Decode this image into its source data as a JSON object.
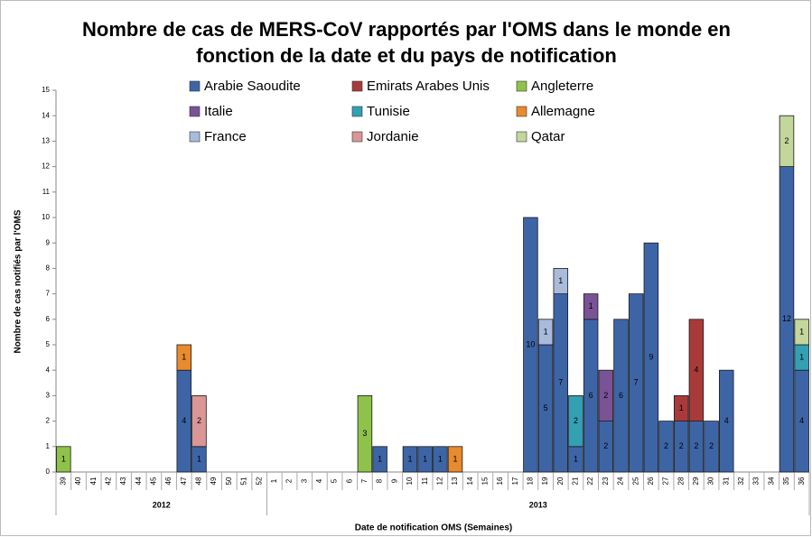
{
  "chart_data": {
    "type": "stacked_bar",
    "title": "Nombre de cas de MERS-CoV rapportés par l'OMS dans le monde en fonction de la date et du pays de notification",
    "y_label": "Nombre de cas notifiés par l'OMS",
    "x_label": "Date de notification OMS (Semaines)",
    "categories": [
      "39",
      "40",
      "41",
      "42",
      "43",
      "44",
      "45",
      "46",
      "47",
      "48",
      "49",
      "50",
      "51",
      "52",
      "1",
      "2",
      "3",
      "4",
      "5",
      "6",
      "7",
      "8",
      "9",
      "10",
      "11",
      "12",
      "13",
      "14",
      "15",
      "16",
      "17",
      "18",
      "19",
      "20",
      "21",
      "22",
      "23",
      "24",
      "25",
      "26",
      "27",
      "28",
      "29",
      "30",
      "31",
      "32",
      "33",
      "34",
      "35",
      "36"
    ],
    "groups": [
      {
        "label": "2012",
        "count": 14
      },
      {
        "label": "2013",
        "count": 36
      }
    ],
    "ylim": [
      0,
      15
    ],
    "yticks": [
      0,
      1,
      2,
      3,
      4,
      5,
      6,
      7,
      8,
      9,
      10,
      11,
      12,
      13,
      14,
      15
    ],
    "grid": false,
    "series": [
      {
        "name": "Arabie Saoudite",
        "color": "#3d65a6",
        "values": [
          null,
          null,
          null,
          null,
          null,
          null,
          null,
          null,
          4,
          1,
          null,
          null,
          null,
          null,
          null,
          null,
          null,
          null,
          null,
          null,
          null,
          1,
          null,
          1,
          1,
          1,
          null,
          null,
          null,
          null,
          null,
          10,
          5,
          7,
          1,
          6,
          2,
          6,
          7,
          9,
          2,
          2,
          2,
          2,
          4,
          null,
          null,
          null,
          12,
          4
        ]
      },
      {
        "name": "Emirats Arabes Unis",
        "color": "#a93a3a",
        "values": [
          null,
          null,
          null,
          null,
          null,
          null,
          null,
          null,
          null,
          null,
          null,
          null,
          null,
          null,
          null,
          null,
          null,
          null,
          null,
          null,
          null,
          null,
          null,
          null,
          null,
          null,
          null,
          null,
          null,
          null,
          null,
          null,
          null,
          null,
          null,
          null,
          null,
          null,
          null,
          null,
          null,
          1,
          4,
          null,
          null,
          null,
          null,
          null,
          null,
          null
        ]
      },
      {
        "name": "Angleterre",
        "color": "#8fc24a",
        "values": [
          1,
          null,
          null,
          null,
          null,
          null,
          null,
          null,
          null,
          null,
          null,
          null,
          null,
          null,
          null,
          null,
          null,
          null,
          null,
          null,
          3,
          null,
          null,
          null,
          null,
          null,
          null,
          null,
          null,
          null,
          null,
          null,
          null,
          null,
          null,
          null,
          null,
          null,
          null,
          null,
          null,
          null,
          null,
          null,
          null,
          null,
          null,
          null,
          null,
          null
        ]
      },
      {
        "name": "Italie",
        "color": "#7a5296",
        "values": [
          null,
          null,
          null,
          null,
          null,
          null,
          null,
          null,
          null,
          null,
          null,
          null,
          null,
          null,
          null,
          null,
          null,
          null,
          null,
          null,
          null,
          null,
          null,
          null,
          null,
          null,
          null,
          null,
          null,
          null,
          null,
          null,
          null,
          null,
          null,
          1,
          2,
          null,
          null,
          null,
          null,
          null,
          null,
          null,
          null,
          null,
          null,
          null,
          null,
          null
        ]
      },
      {
        "name": "Tunisie",
        "color": "#33a0b4",
        "values": [
          null,
          null,
          null,
          null,
          null,
          null,
          null,
          null,
          null,
          null,
          null,
          null,
          null,
          null,
          null,
          null,
          null,
          null,
          null,
          null,
          null,
          null,
          null,
          null,
          null,
          null,
          null,
          null,
          null,
          null,
          null,
          null,
          null,
          null,
          2,
          null,
          null,
          null,
          null,
          null,
          null,
          null,
          null,
          null,
          null,
          null,
          null,
          null,
          null,
          1
        ]
      },
      {
        "name": "Allemagne",
        "color": "#e88a2e",
        "values": [
          null,
          null,
          null,
          null,
          null,
          null,
          null,
          null,
          1,
          null,
          null,
          null,
          null,
          null,
          null,
          null,
          null,
          null,
          null,
          null,
          null,
          null,
          null,
          null,
          null,
          null,
          1,
          null,
          null,
          null,
          null,
          null,
          null,
          null,
          null,
          null,
          null,
          null,
          null,
          null,
          null,
          null,
          null,
          null,
          null,
          null,
          null,
          null,
          null,
          null
        ]
      },
      {
        "name": "France",
        "color": "#a9bbdc",
        "values": [
          null,
          null,
          null,
          null,
          null,
          null,
          null,
          null,
          null,
          null,
          null,
          null,
          null,
          null,
          null,
          null,
          null,
          null,
          null,
          null,
          null,
          null,
          null,
          null,
          null,
          null,
          null,
          null,
          null,
          null,
          null,
          null,
          1,
          1,
          null,
          null,
          null,
          null,
          null,
          null,
          null,
          null,
          null,
          null,
          null,
          null,
          null,
          null,
          null,
          null
        ]
      },
      {
        "name": "Jordanie",
        "color": "#d99694",
        "values": [
          null,
          null,
          null,
          null,
          null,
          null,
          null,
          null,
          null,
          2,
          null,
          null,
          null,
          null,
          null,
          null,
          null,
          null,
          null,
          null,
          null,
          null,
          null,
          null,
          null,
          null,
          null,
          null,
          null,
          null,
          null,
          null,
          null,
          null,
          null,
          null,
          null,
          null,
          null,
          null,
          null,
          null,
          null,
          null,
          null,
          null,
          null,
          null,
          null,
          null
        ]
      },
      {
        "name": "Qatar",
        "color": "#c3d69b",
        "values": [
          null,
          null,
          null,
          null,
          null,
          null,
          null,
          null,
          null,
          null,
          null,
          null,
          null,
          null,
          null,
          null,
          null,
          null,
          null,
          null,
          null,
          null,
          null,
          null,
          null,
          null,
          null,
          null,
          null,
          null,
          null,
          null,
          null,
          null,
          null,
          null,
          null,
          null,
          null,
          null,
          null,
          null,
          null,
          null,
          null,
          null,
          null,
          null,
          2,
          1
        ]
      }
    ]
  }
}
